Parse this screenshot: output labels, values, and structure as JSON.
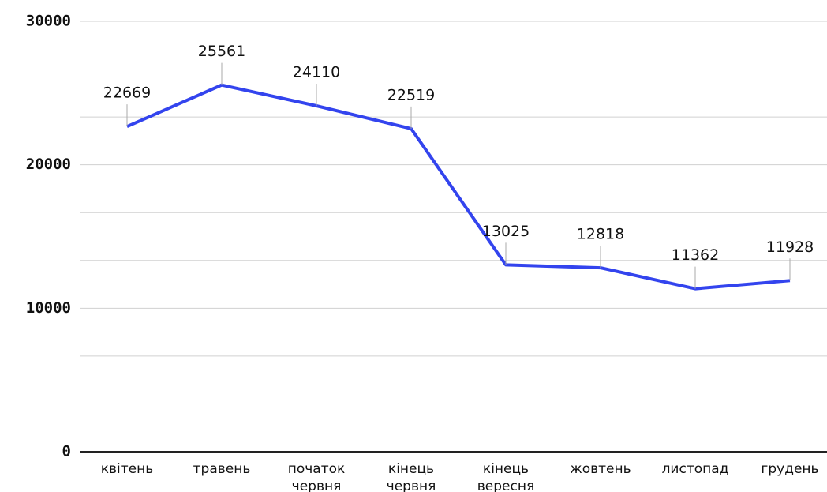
{
  "chart_data": {
    "type": "line",
    "categories": [
      "квітень",
      "травень",
      "початок червня",
      "кінець червня",
      "кінець вересня",
      "жовтень",
      "листопад",
      "грудень"
    ],
    "series": [
      {
        "color": "#3344ee",
        "values": [
          22669,
          25561,
          24110,
          22519,
          13025,
          12818,
          11362,
          11928
        ]
      }
    ],
    "ylim": [
      0,
      30000
    ],
    "yticks": [
      0,
      10000,
      20000,
      30000
    ],
    "grid": true,
    "minor_grid_divisions": 3
  }
}
